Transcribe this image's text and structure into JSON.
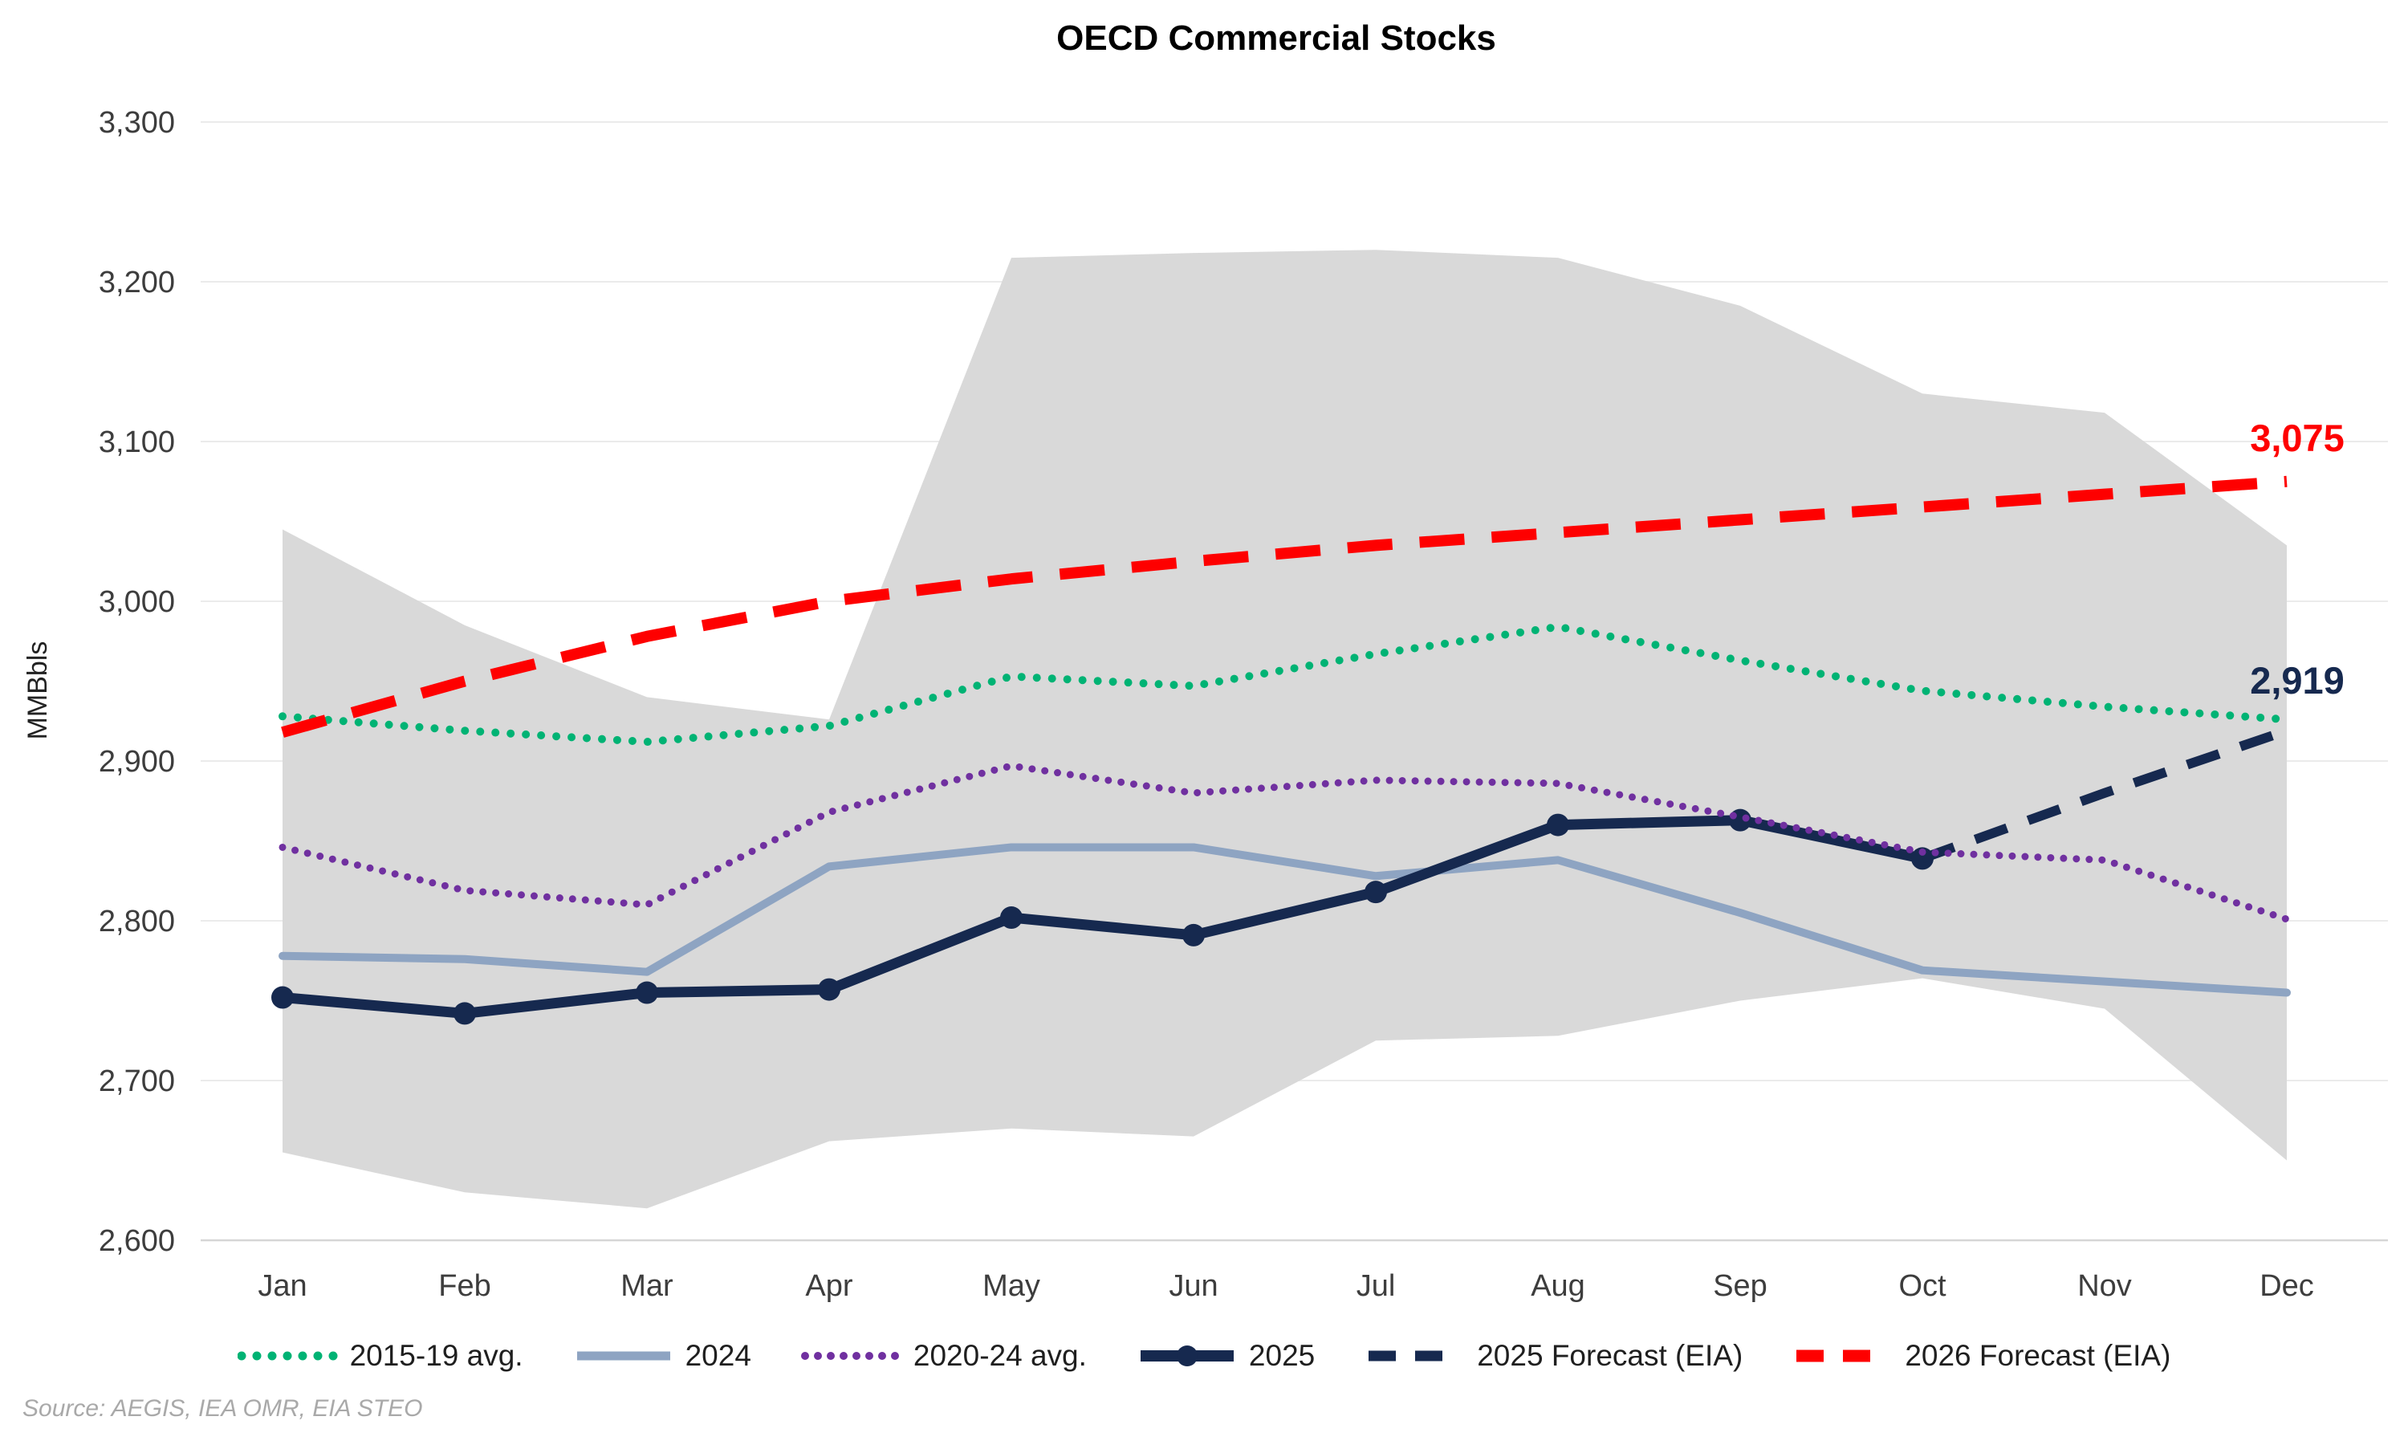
{
  "page": {
    "background": "#ffffff"
  },
  "source_note": "Source: AEGIS, IEA OMR, EIA STEO",
  "chart_data": {
    "type": "line",
    "title": "OECD Commercial Stocks",
    "ylabel": "MMBbls",
    "xlabel": "",
    "ylim": [
      2600,
      3300
    ],
    "ytick_step": 100,
    "grid": "horizontal",
    "legend_position": "bottom",
    "categories": [
      "Jan",
      "Feb",
      "Mar",
      "Apr",
      "May",
      "Jun",
      "Jul",
      "Aug",
      "Sep",
      "Oct",
      "Nov",
      "Dec"
    ],
    "range_band": {
      "name": "historical-range-shading",
      "color": "#d9d9d9",
      "top": [
        3045,
        2985,
        2940,
        2926,
        3215,
        3218,
        3220,
        3215,
        3185,
        3130,
        3118,
        3035
      ],
      "bottom": [
        2655,
        2630,
        2620,
        2662,
        2670,
        2665,
        2725,
        2728,
        2750,
        2764,
        2745,
        2650
      ]
    },
    "series": [
      {
        "name": "2015-19 avg.",
        "style": "dotted",
        "color": "#00b374",
        "width": 10,
        "dash": "0 19",
        "values": [
          2928,
          2919,
          2912,
          2922,
          2953,
          2947,
          2967,
          2984,
          2963,
          2944,
          2934,
          2926
        ]
      },
      {
        "name": "2024",
        "style": "solid",
        "color": "#8ea4c2",
        "width": 10,
        "dash": "",
        "values": [
          2778,
          2776,
          2768,
          2834,
          2846,
          2846,
          2828,
          2838,
          2805,
          2769,
          2762,
          2755
        ]
      },
      {
        "name": "2025",
        "style": "solid-marker",
        "color": "#16294f",
        "width": 13,
        "dash": "",
        "values": [
          2752,
          2742,
          2755,
          2757,
          2802,
          2791,
          2818,
          2860,
          2863,
          2839,
          null,
          null
        ]
      },
      {
        "name": "2025 Forecast (EIA)",
        "style": "dashed",
        "color": "#16294f",
        "width": 12,
        "dash": "42 28",
        "values": [
          null,
          null,
          null,
          null,
          null,
          null,
          null,
          null,
          null,
          2839,
          2880,
          2919
        ]
      },
      {
        "name": "2020-24 avg.",
        "style": "dotted",
        "color": "#7030a0",
        "width": 9,
        "dash": "0 16",
        "values": [
          2846,
          2819,
          2810,
          2868,
          2897,
          2880,
          2888,
          2886,
          2865,
          2843,
          2838,
          2801
        ]
      },
      {
        "name": "2026 Forecast (EIA)",
        "style": "dashed",
        "color": "#fe0000",
        "width": 14,
        "dash": "56 34",
        "values": [
          2918,
          2950,
          2978,
          3000,
          3014,
          3025,
          3035,
          3043,
          3051,
          3059,
          3067,
          3075
        ]
      }
    ],
    "legend_order": [
      "2015-19 avg.",
      "2024",
      "2020-24 avg.",
      "2025",
      "2025 Forecast (EIA)",
      "2026 Forecast (EIA)"
    ],
    "annotations": [
      {
        "text": "2,919",
        "color": "#16294f",
        "month": "Dec",
        "value": 2919
      },
      {
        "text": "3,075",
        "color": "#fe0000",
        "month": "Dec",
        "value": 3075
      }
    ]
  }
}
